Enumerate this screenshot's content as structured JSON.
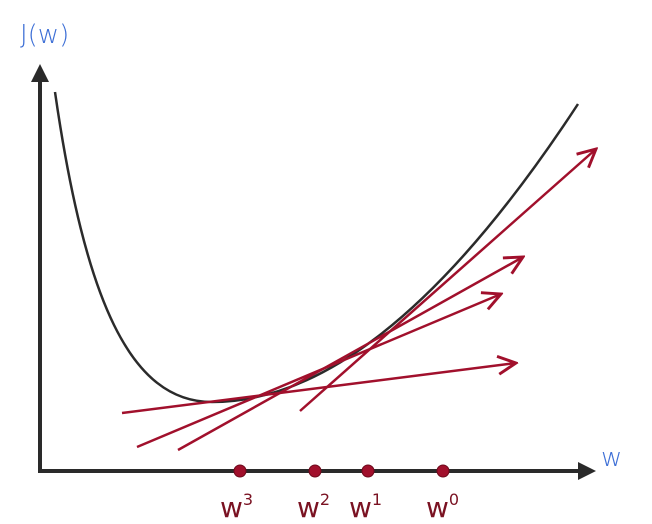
{
  "axes": {
    "y_label": "J(w)",
    "x_label": "w"
  },
  "points": [
    {
      "base": "w",
      "sup": "3"
    },
    {
      "base": "w",
      "sup": "2"
    },
    {
      "base": "w",
      "sup": "1"
    },
    {
      "base": "w",
      "sup": "0"
    }
  ]
}
